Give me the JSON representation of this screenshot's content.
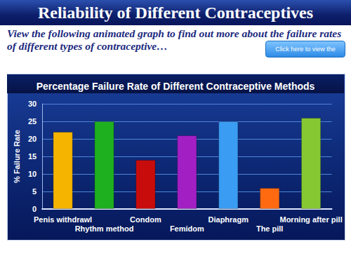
{
  "header": {
    "title": "Reliability of Different Contraceptives",
    "subtitle": "View the following animated graph to find out more about the failure rates of different types of contraceptive…",
    "button": "Click here to view the animated chart…"
  },
  "chart_data": {
    "type": "bar",
    "title": "Percentage Failure Rate of Different Contraceptive Methods",
    "y_label": "% Failure Rate",
    "categories": [
      "Penis withdrawl",
      "Rhythm method",
      "Condom",
      "Femidom",
      "Diaphragm",
      "The pill",
      "Morning after pill"
    ],
    "values": [
      22,
      25,
      14,
      21,
      25,
      6,
      26
    ],
    "colors": [
      "#f5b400",
      "#1fb01f",
      "#c80c0c",
      "#a21fc4",
      "#3a9cf2",
      "#ff6a10",
      "#86c832"
    ],
    "ylim": [
      0,
      30
    ],
    "yticks": [
      0,
      5,
      10,
      15,
      20,
      25,
      30
    ],
    "grid": true
  }
}
